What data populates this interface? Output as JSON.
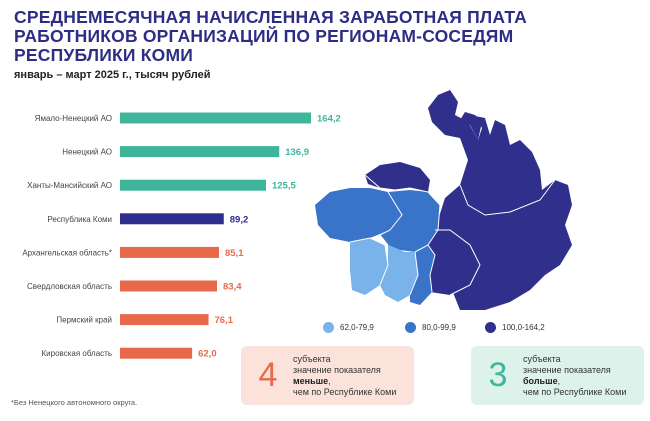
{
  "title": {
    "line1": "СРЕДНЕМЕСЯЧНАЯ НАЧИСЛЕННАЯ ЗАРАБОТНАЯ ПЛАТА",
    "line2": "РАБОТНИКОВ ОРГАНИЗАЦИЙ ПО РЕГИОНАМ-СОСЕДЯМ",
    "line3": "РЕСПУБЛИКИ КОМИ"
  },
  "subtitle": "январь – март 2025 г., тысяч рублей",
  "colors": {
    "title": "#2d2d86",
    "higher": "#3fb59b",
    "komi": "#2e2e8f",
    "lower": "#e8694a",
    "map_light": "#7ab2ea",
    "map_mid": "#3a74c8",
    "map_dark": "#30308c"
  },
  "chart_data": {
    "type": "bar",
    "orientation": "horizontal",
    "categories": [
      "Ямало-Ненецкий  АО",
      "Ненецкий  АО",
      "Ханты-Мансийский  АО",
      "Республика Коми",
      "Архангельская область*",
      "Свердловская  область",
      "Пермский  край",
      "Кировская  область"
    ],
    "values": [
      164.2,
      136.9,
      125.5,
      89.2,
      85.1,
      83.4,
      76.1,
      62.0
    ],
    "value_labels": [
      "164,2",
      "136,9",
      "125,5",
      "89,2",
      "85,1",
      "83,4",
      "76,1",
      "62,0"
    ],
    "bar_colors": [
      "#3fb59b",
      "#3fb59b",
      "#3fb59b",
      "#2e2e8f",
      "#e8694a",
      "#e8694a",
      "#e8694a",
      "#e8694a"
    ],
    "xlim": [
      0,
      164.2
    ],
    "grid": false
  },
  "legend": [
    {
      "label": "62,0-79,9",
      "color": "#7ab2ea"
    },
    {
      "label": "80,0-99,9",
      "color": "#3a74c8"
    },
    {
      "label": "100,0-164,2",
      "color": "#30308c"
    }
  ],
  "info_less": {
    "number": "4",
    "line1": "субъекта",
    "line2": "значение показателя",
    "bold": "меньше",
    "line4": "чем по Республике Коми",
    "bg": "#fbe3db",
    "num_color": "#e8694a"
  },
  "info_more": {
    "number": "3",
    "line1": "субъекта",
    "line2": "значение показателя",
    "bold": "больше",
    "line4": "чем по Республике Коми",
    "bg": "#dcf2ea",
    "num_color": "#3fb59b"
  },
  "footnote": "*Без Ненецкого автономного  округа."
}
